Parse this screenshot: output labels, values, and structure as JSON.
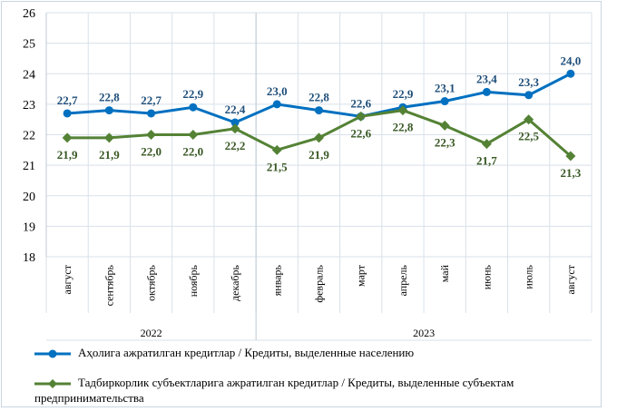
{
  "chart_data": {
    "type": "line",
    "categories": [
      "август",
      "сентябрь",
      "октябрь",
      "ноябрь",
      "декабрь",
      "январь",
      "февраль",
      "март",
      "апрель",
      "май",
      "июнь",
      "июль",
      "август"
    ],
    "groups": [
      {
        "label": "2022",
        "span": 5
      },
      {
        "label": "2023",
        "span": 8
      }
    ],
    "ylim": [
      18,
      26
    ],
    "yticks": [
      18,
      19,
      20,
      21,
      22,
      23,
      24,
      25,
      26
    ],
    "grid": true,
    "legend_position": "bottom",
    "series": [
      {
        "name": "Аҳолига ажратилган кредитлар / Кредиты, выделенные населению",
        "color": "#0070C0",
        "marker": "circle",
        "values": [
          22.7,
          22.8,
          22.7,
          22.9,
          22.4,
          23.0,
          22.8,
          22.6,
          22.9,
          23.1,
          23.4,
          23.3,
          24.0
        ],
        "labels": [
          "22,7",
          "22,8",
          "22,7",
          "22,9",
          "22,4",
          "23,0",
          "22,8",
          "22,6",
          "22,9",
          "23,1",
          "23,4",
          "23,3",
          "24,0"
        ]
      },
      {
        "name": "Тадбиркорлик субъектларига ажратилган кредитлар / Кредиты, выделенные субъектам предпринимательства",
        "color": "#548235",
        "marker": "diamond",
        "values": [
          21.9,
          21.9,
          22.0,
          22.0,
          22.2,
          21.5,
          21.9,
          22.6,
          22.8,
          22.3,
          21.7,
          22.5,
          21.3
        ],
        "labels": [
          "21,9",
          "21,9",
          "22,0",
          "22,0",
          "22,2",
          "21,5",
          "21,9",
          "22,6",
          "22,8",
          "22,3",
          "21,7",
          "22,5",
          "21,3"
        ]
      }
    ]
  }
}
